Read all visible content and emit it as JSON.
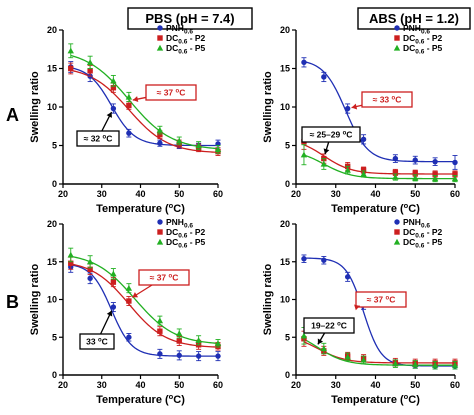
{
  "row_labels": [
    "A",
    "B"
  ],
  "column_headers": [
    "PBS (pH = 7.4)",
    "ABS (pH = 1.2)"
  ],
  "colors": {
    "PNH": "#1f2fb4",
    "P2": "#cc1f1f",
    "P5": "#22b022"
  },
  "chart_data": [
    {
      "type": "scatter",
      "panel": "A-left",
      "title": "PBS (pH = 7.4)",
      "xlabel": "Temperature (°C)",
      "ylabel": "Swelling ratio",
      "xlim": [
        20,
        60
      ],
      "ylim": [
        0,
        20
      ],
      "xticks": [
        20,
        30,
        40,
        50,
        60
      ],
      "yticks": [
        0,
        5,
        10,
        15,
        20
      ],
      "legend": "top-right",
      "series": [
        {
          "name": "PNH0.6",
          "color": "#1f2fb4",
          "marker": "circle",
          "x": [
            22,
            27,
            33,
            37,
            45,
            50,
            55,
            60
          ],
          "y": [
            15.2,
            14.0,
            9.8,
            6.6,
            5.3,
            5.0,
            4.9,
            5.2
          ],
          "err": [
            0.7,
            0.7,
            0.6,
            0.5,
            0.4,
            0.4,
            0.4,
            0.5
          ],
          "fit": {
            "top": 15.4,
            "bottom": 5.0,
            "mid": 32.5,
            "slope": 3.0
          }
        },
        {
          "name": "DC0.6 - P2",
          "color": "#cc1f1f",
          "marker": "square",
          "x": [
            22,
            27,
            33,
            37,
            45,
            50,
            55,
            60
          ],
          "y": [
            15.0,
            14.7,
            12.5,
            10.2,
            6.4,
            5.2,
            4.7,
            4.2
          ],
          "err": [
            0.7,
            0.7,
            0.6,
            0.5,
            0.5,
            0.5,
            0.5,
            0.5
          ],
          "fit": {
            "top": 15.3,
            "bottom": 4.0,
            "mid": 37.0,
            "slope": 5.0
          }
        },
        {
          "name": "DC0.6 - P5",
          "color": "#22b022",
          "marker": "triangle",
          "x": [
            22,
            27,
            33,
            37,
            45,
            50,
            55,
            60
          ],
          "y": [
            17.3,
            15.8,
            13.4,
            11.3,
            7.0,
            5.6,
            5.0,
            4.5
          ],
          "err": [
            0.9,
            0.8,
            0.7,
            0.6,
            0.5,
            0.5,
            0.5,
            0.5
          ],
          "fit": {
            "top": 17.5,
            "bottom": 4.4,
            "mid": 37.0,
            "slope": 5.5
          }
        }
      ],
      "annotations": [
        {
          "text": "≈ 32 °C",
          "color": "#000000",
          "at": [
            33,
            9.8
          ]
        },
        {
          "text": "≈ 37 °C",
          "color": "#cc1f1f",
          "at": [
            37,
            10.8
          ]
        }
      ]
    },
    {
      "type": "scatter",
      "panel": "A-right",
      "title": "ABS (pH = 1.2)",
      "xlabel": "Temperature (°C)",
      "ylabel": "Swelling ratio",
      "xlim": [
        20,
        60
      ],
      "ylim": [
        0,
        20
      ],
      "xticks": [
        20,
        30,
        40,
        50,
        60
      ],
      "yticks": [
        0,
        5,
        10,
        15,
        20
      ],
      "legend": "top-right",
      "series": [
        {
          "name": "PNH0.6",
          "color": "#1f2fb4",
          "marker": "circle",
          "x": [
            22,
            27,
            33,
            37,
            45,
            50,
            55,
            60
          ],
          "y": [
            15.8,
            13.9,
            9.8,
            5.8,
            3.3,
            3.1,
            2.9,
            2.8
          ],
          "err": [
            0.6,
            0.6,
            0.6,
            0.6,
            0.5,
            0.5,
            0.5,
            0.9
          ],
          "fit": {
            "top": 16.2,
            "bottom": 2.9,
            "mid": 32.5,
            "slope": 2.8
          }
        },
        {
          "name": "DC0.6 - P2",
          "color": "#cc1f1f",
          "marker": "square",
          "x": [
            22,
            27,
            33,
            37,
            45,
            50,
            55,
            60
          ],
          "y": [
            5.5,
            3.3,
            2.3,
            1.8,
            1.5,
            1.4,
            1.3,
            1.3
          ],
          "err": [
            1.0,
            0.6,
            0.5,
            0.4,
            0.4,
            0.4,
            0.4,
            0.4
          ],
          "fit": {
            "top": 6.0,
            "bottom": 1.3,
            "mid": 27.0,
            "slope": 3.5
          }
        },
        {
          "name": "DC0.6 - P5",
          "color": "#22b022",
          "marker": "triangle",
          "x": [
            22,
            27,
            33,
            37,
            45,
            50,
            55,
            60
          ],
          "y": [
            3.8,
            2.6,
            1.8,
            1.3,
            0.9,
            0.8,
            0.7,
            0.7
          ],
          "err": [
            1.3,
            0.7,
            0.5,
            0.4,
            0.4,
            0.4,
            0.4,
            0.4
          ],
          "fit": {
            "top": 4.5,
            "bottom": 0.7,
            "mid": 27.0,
            "slope": 3.5
          }
        }
      ],
      "annotations": [
        {
          "text": "≈ 33 °C",
          "color": "#cc1f1f",
          "at": [
            33,
            9.8
          ]
        },
        {
          "text": "≈ 25–29 °C",
          "color": "#000000",
          "at": [
            27,
            3.4
          ]
        }
      ]
    },
    {
      "type": "scatter",
      "panel": "B-left",
      "title": "",
      "xlabel": "Temperature (°C)",
      "ylabel": "Swelling ratio",
      "xlim": [
        20,
        60
      ],
      "ylim": [
        0,
        20
      ],
      "xticks": [
        20,
        30,
        40,
        50,
        60
      ],
      "yticks": [
        0,
        5,
        10,
        15,
        20
      ],
      "legend": "top-right",
      "series": [
        {
          "name": "PNH0.6",
          "color": "#1f2fb4",
          "marker": "circle",
          "x": [
            22,
            27,
            33,
            37,
            45,
            50,
            55,
            60
          ],
          "y": [
            14.3,
            12.8,
            9.0,
            5.0,
            2.8,
            2.6,
            2.5,
            2.5
          ],
          "err": [
            0.7,
            0.7,
            0.6,
            0.5,
            0.6,
            0.6,
            0.6,
            0.6
          ],
          "fit": {
            "top": 14.8,
            "bottom": 2.5,
            "mid": 32.5,
            "slope": 2.6
          }
        },
        {
          "name": "DC0.6 - P2",
          "color": "#cc1f1f",
          "marker": "square",
          "x": [
            22,
            27,
            33,
            37,
            45,
            50,
            55,
            60
          ],
          "y": [
            14.8,
            14.0,
            12.3,
            9.8,
            5.8,
            4.5,
            4.0,
            3.8
          ],
          "err": [
            0.8,
            0.7,
            0.6,
            0.6,
            0.6,
            0.6,
            0.6,
            0.5
          ],
          "fit": {
            "top": 15.2,
            "bottom": 3.6,
            "mid": 37.0,
            "slope": 4.8
          }
        },
        {
          "name": "DC0.6 - P5",
          "color": "#22b022",
          "marker": "triangle",
          "x": [
            22,
            27,
            33,
            37,
            45,
            50,
            55,
            60
          ],
          "y": [
            15.9,
            15.0,
            13.4,
            11.5,
            7.2,
            5.5,
            4.6,
            4.2
          ],
          "err": [
            0.9,
            0.8,
            0.7,
            0.6,
            0.6,
            0.6,
            0.6,
            0.5
          ],
          "fit": {
            "top": 16.2,
            "bottom": 4.0,
            "mid": 38.5,
            "slope": 5.2
          }
        }
      ],
      "annotations": [
        {
          "text": "33 °C",
          "color": "#000000",
          "at": [
            33,
            9.0
          ]
        },
        {
          "text": "≈ 37 °C",
          "color": "#cc1f1f",
          "at": [
            37,
            10.0
          ]
        }
      ]
    },
    {
      "type": "scatter",
      "panel": "B-right",
      "title": "",
      "xlabel": "Temperature (°C)",
      "ylabel": "Swelling ratio",
      "xlim": [
        20,
        60
      ],
      "ylim": [
        0,
        20
      ],
      "xticks": [
        20,
        30,
        40,
        50,
        60
      ],
      "yticks": [
        0,
        5,
        10,
        15,
        20
      ],
      "legend": "top-right",
      "series": [
        {
          "name": "PNH0.6",
          "color": "#1f2fb4",
          "marker": "circle",
          "x": [
            22,
            27,
            33,
            37,
            45,
            50,
            55,
            60
          ],
          "y": [
            15.4,
            15.2,
            13.0,
            9.3,
            1.6,
            1.3,
            1.2,
            1.2
          ],
          "err": [
            0.5,
            0.5,
            0.6,
            0.6,
            0.4,
            0.4,
            0.4,
            0.4
          ],
          "fit": {
            "top": 15.5,
            "bottom": 1.2,
            "mid": 37.0,
            "slope": 2.2
          }
        },
        {
          "name": "DC0.6 - P2",
          "color": "#cc1f1f",
          "marker": "square",
          "x": [
            22,
            27,
            33,
            37,
            45,
            50,
            55,
            60
          ],
          "y": [
            4.8,
            3.2,
            2.5,
            2.2,
            1.7,
            1.6,
            1.6,
            1.6
          ],
          "err": [
            1.0,
            0.6,
            0.5,
            0.5,
            0.5,
            0.5,
            0.5,
            0.5
          ],
          "fit": {
            "top": 5.4,
            "bottom": 1.6,
            "mid": 25.5,
            "slope": 3.5
          }
        },
        {
          "name": "DC0.6 - P5",
          "color": "#22b022",
          "marker": "triangle",
          "x": [
            22,
            27,
            33,
            37,
            45,
            50,
            55,
            60
          ],
          "y": [
            5.2,
            3.5,
            2.4,
            2.0,
            1.5,
            1.4,
            1.3,
            1.3
          ],
          "err": [
            1.1,
            0.7,
            0.5,
            0.5,
            0.5,
            0.5,
            0.5,
            0.5
          ],
          "fit": {
            "top": 6.0,
            "bottom": 1.3,
            "mid": 25.5,
            "slope": 3.5
          }
        }
      ],
      "annotations": [
        {
          "text": "≈ 37 °C",
          "color": "#cc1f1f",
          "at": [
            37,
            9.3
          ]
        },
        {
          "text": "19–22 °C",
          "color": "#000000",
          "at": [
            25,
            3.6
          ]
        }
      ]
    }
  ]
}
